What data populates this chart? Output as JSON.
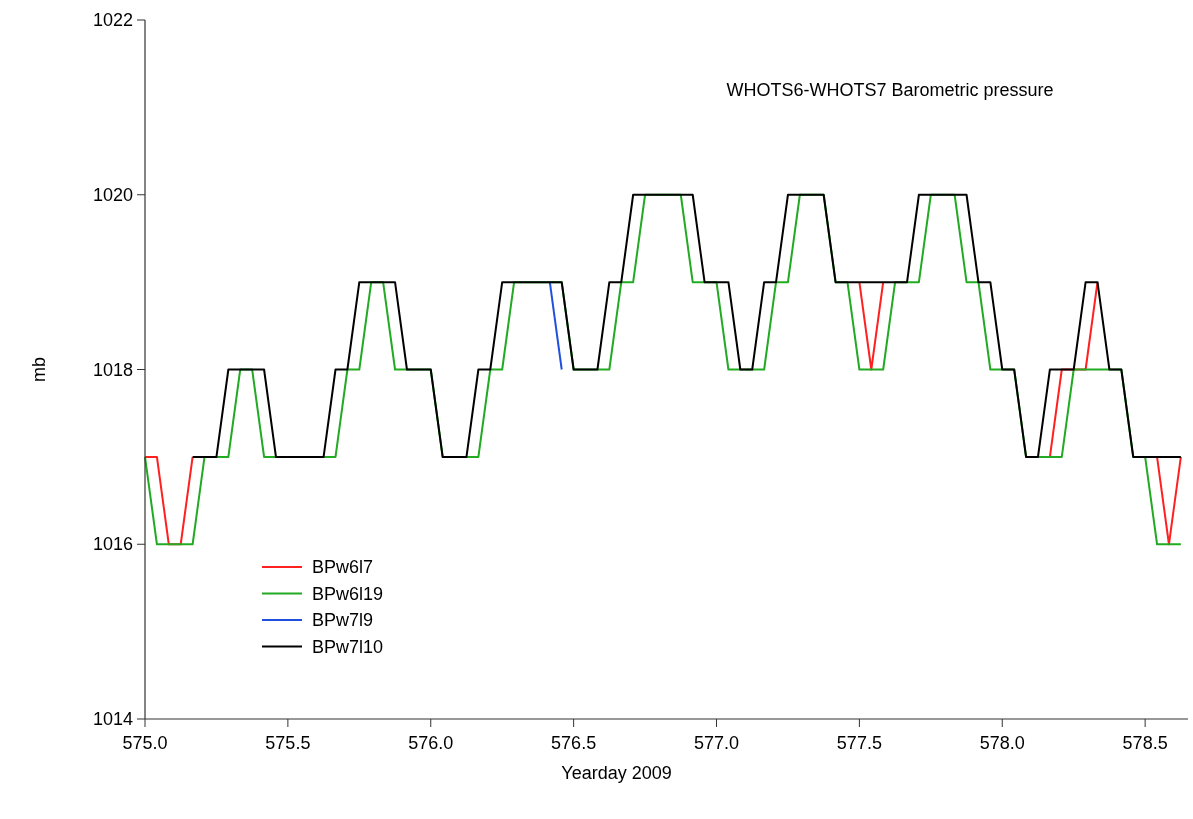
{
  "chart_data": {
    "type": "line",
    "title": "WHOTS6-WHOTS7 Barometric pressure",
    "xlabel": "Yearday 2009",
    "ylabel": "mb",
    "xlim": [
      575,
      578.65
    ],
    "xticks": [
      {
        "value": 575,
        "label": "575.0"
      },
      {
        "value": 575.5,
        "label": "575.5"
      },
      {
        "value": 576,
        "label": "576.0"
      },
      {
        "value": 576.5,
        "label": "576.5"
      },
      {
        "value": 577,
        "label": "577.0"
      },
      {
        "value": 577.5,
        "label": "577.5"
      },
      {
        "value": 578,
        "label": "578.0"
      },
      {
        "value": 578.5,
        "label": "578.5"
      }
    ],
    "ylim": [
      1014,
      1022
    ],
    "yticks": [
      1014,
      1016,
      1018,
      1020,
      1022
    ],
    "grid": false,
    "legend": "bottom left",
    "marker": "none",
    "line_style": "solid",
    "series": [
      {
        "name": "BPw6l7",
        "color": "#ff2020",
        "x": [
          575,
          575.0417,
          575.0833,
          575.125,
          575.1667,
          576.0,
          577.5,
          577.5417,
          577.5833,
          578.0,
          578.1667,
          578.2083,
          578.2917,
          578.3333,
          578.375,
          578.4583,
          578.5417,
          578.5833,
          578.625
        ],
        "values": [
          1017,
          1017,
          1016,
          1016,
          1017,
          null,
          1019,
          1018,
          1019,
          null,
          1017,
          1018,
          1018,
          1019,
          null,
          null,
          1017,
          1016,
          1017
        ]
      },
      {
        "name": "BPw6l19",
        "color": "#22aa22",
        "x": [
          575,
          575.0417,
          575.1667,
          575.2083,
          575.2917,
          575.3333,
          575.375,
          575.4167,
          575.6667,
          575.7083,
          575.75,
          575.7917,
          575.8333,
          575.875,
          576.0,
          576.0417,
          576.1667,
          576.2083,
          576.25,
          576.2917,
          576.4583,
          576.5,
          576.625,
          576.6667,
          576.7083,
          576.75,
          576.875,
          576.9167,
          577.0,
          577.0417,
          577.1667,
          577.2083,
          577.25,
          577.2917,
          577.375,
          577.4167,
          577.4583,
          577.5,
          577.5833,
          577.625,
          577.7083,
          577.75,
          577.8333,
          577.875,
          577.9167,
          577.9583,
          578.0417,
          578.0833,
          578.2083,
          578.25,
          578.4167,
          578.4583,
          578.5,
          578.5417,
          578.625
        ],
        "values": [
          1017,
          1016,
          1016,
          1017,
          1017,
          1018,
          1018,
          1017,
          1017,
          1018,
          1018,
          1019,
          1019,
          1018,
          1018,
          1017,
          1017,
          1018,
          1018,
          1019,
          1019,
          1018,
          1018,
          1019,
          1019,
          1020,
          1020,
          1019,
          1019,
          1018,
          1018,
          1019,
          1019,
          1020,
          1020,
          1019,
          1019,
          1018,
          1018,
          1019,
          1019,
          1020,
          1020,
          1019,
          1019,
          1018,
          1018,
          1017,
          1017,
          1018,
          1018,
          1017,
          1017,
          1016,
          1016
        ]
      },
      {
        "name": "BPw7l9",
        "color": "#2050e0",
        "x": [
          576.4167,
          576.4583
        ],
        "values": [
          1019,
          1018
        ]
      },
      {
        "name": "BPw7l10",
        "color": "#000000",
        "x": [
          575.1667,
          575.25,
          575.2917,
          575.4167,
          575.4583,
          575.625,
          575.6667,
          575.7083,
          575.75,
          575.875,
          575.9167,
          576.0,
          576.0417,
          576.125,
          576.1667,
          576.2083,
          576.25,
          576.4583,
          576.5,
          576.5833,
          576.625,
          576.6667,
          576.7083,
          576.9167,
          576.9583,
          577.0417,
          577.0833,
          577.125,
          577.1667,
          577.2083,
          577.25,
          577.375,
          577.4167,
          577.6667,
          577.7083,
          577.875,
          577.9167,
          577.9583,
          578.0,
          578.0417,
          578.0833,
          578.125,
          578.1667,
          578.25,
          578.2917,
          578.3333,
          578.375,
          578.4167,
          578.4583,
          578.625
        ],
        "values": [
          1017,
          1017,
          1018,
          1018,
          1017,
          1017,
          1018,
          1018,
          1019,
          1019,
          1018,
          1018,
          1017,
          1017,
          1018,
          1018,
          1019,
          1019,
          1018,
          1018,
          1019,
          1019,
          1020,
          1020,
          1019,
          1019,
          1018,
          1018,
          1019,
          1019,
          1020,
          1020,
          1019,
          1019,
          1020,
          1020,
          1019,
          1019,
          1018,
          1018,
          1017,
          1017,
          1018,
          1018,
          1019,
          1019,
          1018,
          1018,
          1017,
          1017
        ]
      }
    ]
  }
}
